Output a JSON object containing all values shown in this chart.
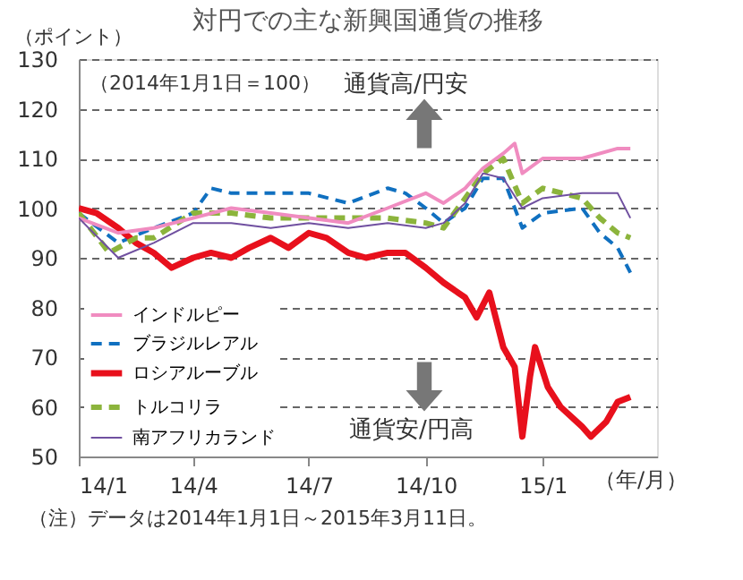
{
  "chart_data": {
    "type": "line",
    "title": "対円での主な新興国通貨の推移",
    "ylabel": "（ポイント）",
    "xlabel": "（年/月）",
    "annotations": [
      "（2014年1月1日＝100）",
      "通貨高/円安",
      "通貨安/円高",
      "（注）データは2014年1月1日～2015年3月11日。"
    ],
    "xlim": [
      "2014-01-01",
      "2015-04-01"
    ],
    "xticks": [
      {
        "value": "2014-01-01",
        "label": "14/1"
      },
      {
        "value": "2014-04-01",
        "label": "14/4"
      },
      {
        "value": "2014-07-01",
        "label": "14/7"
      },
      {
        "value": "2014-10-01",
        "label": "14/10"
      },
      {
        "value": "2015-01-01",
        "label": "15/1"
      }
    ],
    "ylim": [
      50,
      130
    ],
    "yticks": [
      50,
      60,
      70,
      80,
      90,
      100,
      110,
      120,
      130
    ],
    "grid": "y",
    "legend": "bottom left",
    "series": [
      {
        "name": "インドルピー",
        "color": "#f08cc0",
        "line_style": "solid",
        "x": [
          "2014-01-01",
          "2014-02-01",
          "2014-03-01",
          "2014-04-01",
          "2014-05-01",
          "2014-06-01",
          "2014-07-01",
          "2014-08-01",
          "2014-09-01",
          "2014-10-01",
          "2014-10-15",
          "2014-11-01",
          "2014-11-15",
          "2014-12-01",
          "2014-12-10",
          "2014-12-16",
          "2015-01-01",
          "2015-02-01",
          "2015-03-01",
          "2015-03-11"
        ],
        "values": [
          98,
          95,
          96,
          98,
          100,
          99,
          98,
          97,
          100,
          103,
          101,
          104,
          108,
          111,
          113,
          107,
          110,
          110,
          112,
          112
        ]
      },
      {
        "name": "ブラジルレアル",
        "color": "#1070c0",
        "line_style": "dashed",
        "x": [
          "2014-01-01",
          "2014-02-01",
          "2014-03-01",
          "2014-04-01",
          "2014-04-15",
          "2014-05-01",
          "2014-06-01",
          "2014-07-01",
          "2014-08-01",
          "2014-09-01",
          "2014-09-15",
          "2014-10-01",
          "2014-10-15",
          "2014-11-01",
          "2014-11-15",
          "2014-12-01",
          "2014-12-16",
          "2015-01-01",
          "2015-02-01",
          "2015-02-15",
          "2015-03-01",
          "2015-03-11"
        ],
        "values": [
          99,
          93,
          96,
          99,
          104,
          103,
          103,
          103,
          101,
          104,
          103,
          100,
          97,
          100,
          106,
          106,
          96,
          99,
          100,
          95,
          92,
          87
        ]
      },
      {
        "name": "ロシアルーブル",
        "color": "#e8101c",
        "line_style": "solid",
        "x": [
          "2014-01-01",
          "2014-01-15",
          "2014-02-01",
          "2014-02-15",
          "2014-03-01",
          "2014-03-15",
          "2014-04-01",
          "2014-04-15",
          "2014-05-01",
          "2014-05-15",
          "2014-06-01",
          "2014-06-15",
          "2014-07-01",
          "2014-07-15",
          "2014-08-01",
          "2014-08-15",
          "2014-09-01",
          "2014-09-15",
          "2014-10-01",
          "2014-10-15",
          "2014-11-01",
          "2014-11-10",
          "2014-11-20",
          "2014-12-01",
          "2014-12-10",
          "2014-12-16",
          "2014-12-22",
          "2014-12-26",
          "2015-01-05",
          "2015-01-15",
          "2015-02-01",
          "2015-02-08",
          "2015-02-20",
          "2015-03-01",
          "2015-03-11"
        ],
        "values": [
          100,
          99,
          96,
          93,
          91,
          88,
          90,
          91,
          90,
          92,
          94,
          92,
          95,
          94,
          91,
          90,
          91,
          91,
          88,
          85,
          82,
          78,
          83,
          72,
          68,
          54,
          66,
          72,
          64,
          60,
          56,
          54,
          57,
          61,
          62
        ]
      },
      {
        "name": "トルコリラ",
        "color": "#8cb43c",
        "line_style": "dashed",
        "x": [
          "2014-01-01",
          "2014-01-25",
          "2014-02-15",
          "2014-03-01",
          "2014-04-01",
          "2014-05-01",
          "2014-06-01",
          "2014-07-01",
          "2014-08-01",
          "2014-09-01",
          "2014-10-01",
          "2014-10-15",
          "2014-11-01",
          "2014-11-15",
          "2014-12-01",
          "2014-12-16",
          "2015-01-01",
          "2015-02-01",
          "2015-02-15",
          "2015-03-01",
          "2015-03-11"
        ],
        "values": [
          99,
          91,
          94,
          94,
          99,
          99,
          98,
          98,
          98,
          98,
          97,
          96,
          102,
          107,
          110,
          101,
          104,
          102,
          98,
          95,
          94
        ]
      },
      {
        "name": "南アフリカランド",
        "color": "#7050a0",
        "line_style": "solid",
        "x": [
          "2014-01-01",
          "2014-02-01",
          "2014-03-01",
          "2014-04-01",
          "2014-05-01",
          "2014-06-01",
          "2014-07-01",
          "2014-08-01",
          "2014-09-01",
          "2014-10-01",
          "2014-10-15",
          "2014-11-01",
          "2014-11-15",
          "2014-12-01",
          "2014-12-16",
          "2015-01-01",
          "2015-02-01",
          "2015-03-01",
          "2015-03-11"
        ],
        "values": [
          98,
          90,
          93,
          97,
          97,
          96,
          97,
          96,
          97,
          96,
          97,
          101,
          107,
          106,
          100,
          102,
          103,
          103,
          98
        ]
      }
    ]
  }
}
